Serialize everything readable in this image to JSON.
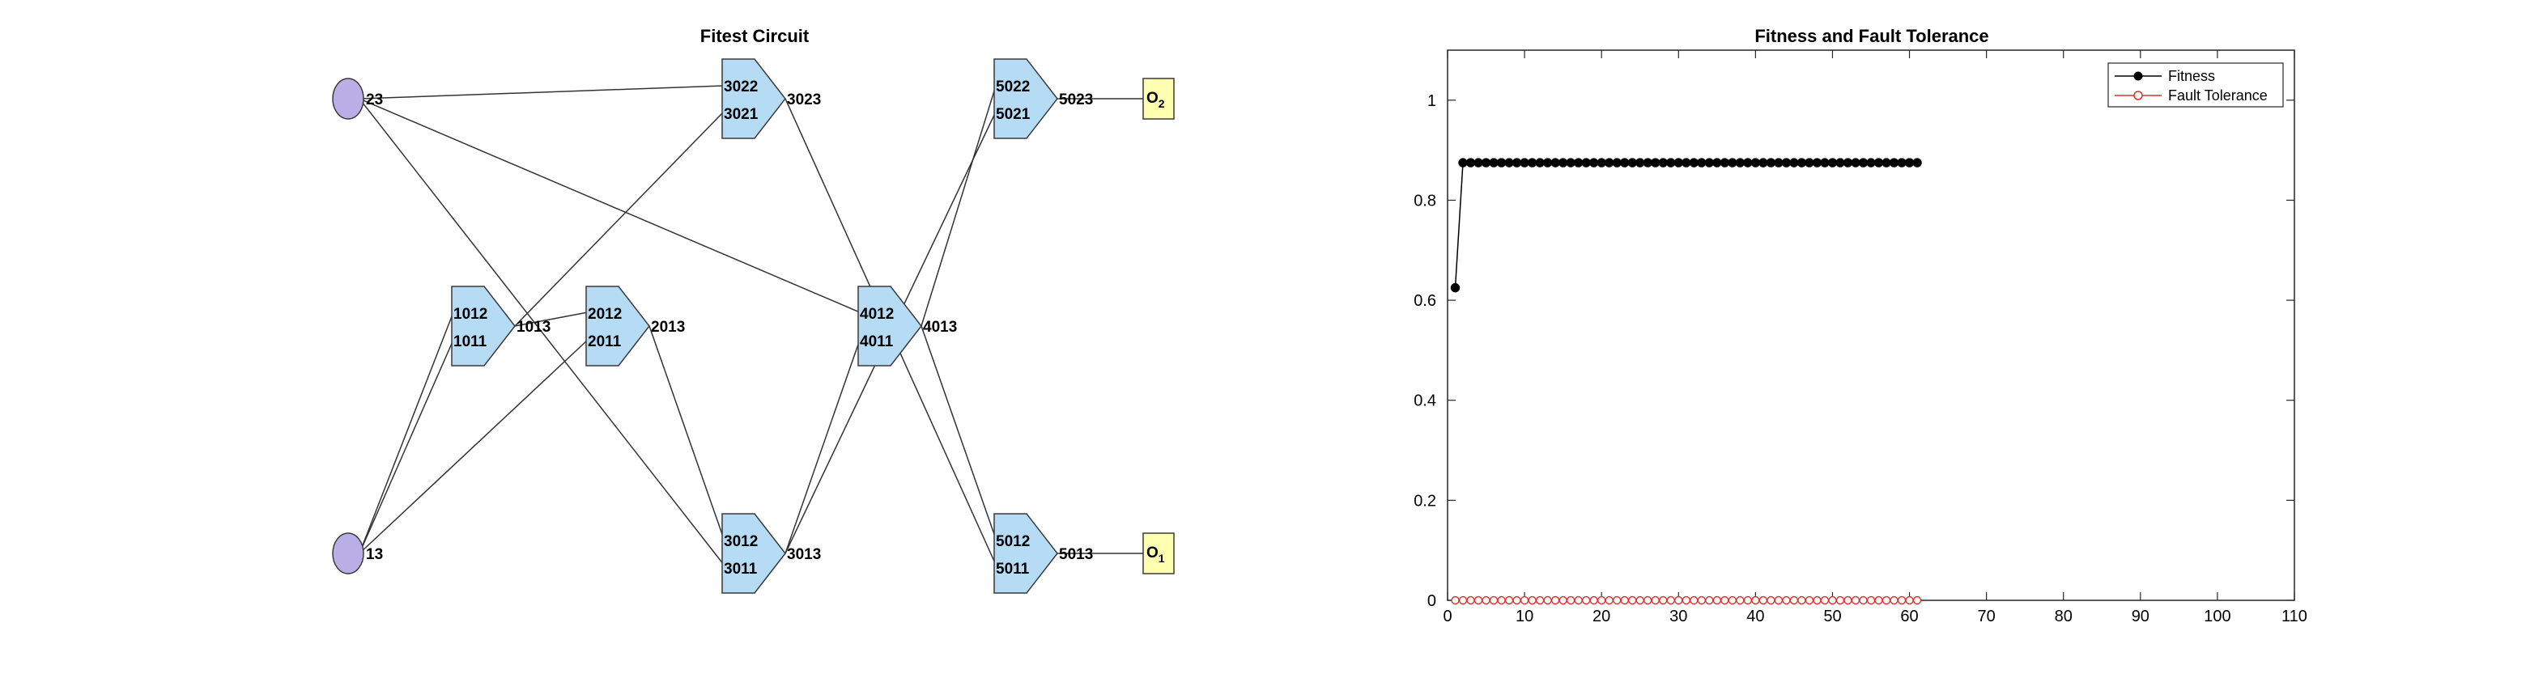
{
  "circuit": {
    "title": "Fitest Circuit",
    "inputs": [
      {
        "id": "in-23",
        "label": "23"
      },
      {
        "id": "in-13",
        "label": "13"
      }
    ],
    "gates": [
      {
        "id": "g1",
        "in_top": "1012",
        "in_bot": "1011",
        "out": "1013"
      },
      {
        "id": "g2",
        "in_top": "2012",
        "in_bot": "2011",
        "out": "2013"
      },
      {
        "id": "g3",
        "in_top": "3022",
        "in_bot": "3021",
        "out": "3023"
      },
      {
        "id": "g4",
        "in_top": "3012",
        "in_bot": "3011",
        "out": "3013"
      },
      {
        "id": "g5",
        "in_top": "4012",
        "in_bot": "4011",
        "out": "4013"
      },
      {
        "id": "g6",
        "in_top": "5022",
        "in_bot": "5021",
        "out": "5023"
      },
      {
        "id": "g7",
        "in_top": "5012",
        "in_bot": "5011",
        "out": "5013"
      }
    ],
    "outputs": [
      {
        "id": "out-2",
        "label": "O",
        "sub": "2"
      },
      {
        "id": "out-1",
        "label": "O",
        "sub": "1"
      }
    ],
    "colors": {
      "input_fill": "#b9aee6",
      "gate_fill": "#b6dcf5",
      "output_fill": "#ffffb0",
      "stroke": "#3a3a3a"
    }
  },
  "chart_data": {
    "type": "line",
    "title": "Fitness and Fault Tolerance",
    "xlabel": "",
    "ylabel": "",
    "xlim": [
      0,
      110
    ],
    "ylim": [
      0,
      1.1
    ],
    "xticks": [
      0,
      10,
      20,
      30,
      40,
      50,
      60,
      70,
      80,
      90,
      100,
      110
    ],
    "yticks": [
      0,
      0.2,
      0.4,
      0.6,
      0.8,
      1
    ],
    "xtick_labels": [
      "0",
      "10",
      "20",
      "30",
      "40",
      "50",
      "60",
      "70",
      "80",
      "90",
      "100",
      "110"
    ],
    "ytick_labels": [
      "0",
      "0.2",
      "0.4",
      "0.6",
      "0.8",
      "1"
    ],
    "grid": false,
    "legend_position": "top-right",
    "x": [
      1,
      2,
      3,
      4,
      5,
      6,
      7,
      8,
      9,
      10,
      11,
      12,
      13,
      14,
      15,
      16,
      17,
      18,
      19,
      20,
      21,
      22,
      23,
      24,
      25,
      26,
      27,
      28,
      29,
      30,
      31,
      32,
      33,
      34,
      35,
      36,
      37,
      38,
      39,
      40,
      41,
      42,
      43,
      44,
      45,
      46,
      47,
      48,
      49,
      50,
      51,
      52,
      53,
      54,
      55,
      56,
      57,
      58,
      59,
      60,
      61
    ],
    "series": [
      {
        "name": "Fitness",
        "color": "#000000",
        "marker": "filled-circle",
        "values": [
          0.625,
          0.875,
          0.875,
          0.875,
          0.875,
          0.875,
          0.875,
          0.875,
          0.875,
          0.875,
          0.875,
          0.875,
          0.875,
          0.875,
          0.875,
          0.875,
          0.875,
          0.875,
          0.875,
          0.875,
          0.875,
          0.875,
          0.875,
          0.875,
          0.875,
          0.875,
          0.875,
          0.875,
          0.875,
          0.875,
          0.875,
          0.875,
          0.875,
          0.875,
          0.875,
          0.875,
          0.875,
          0.875,
          0.875,
          0.875,
          0.875,
          0.875,
          0.875,
          0.875,
          0.875,
          0.875,
          0.875,
          0.875,
          0.875,
          0.875,
          0.875,
          0.875,
          0.875,
          0.875,
          0.875,
          0.875,
          0.875,
          0.875,
          0.875,
          0.875,
          0.875
        ]
      },
      {
        "name": "Fault Tolerance",
        "color": "#e03030",
        "marker": "open-circle",
        "values": [
          0,
          0,
          0,
          0,
          0,
          0,
          0,
          0,
          0,
          0,
          0,
          0,
          0,
          0,
          0,
          0,
          0,
          0,
          0,
          0,
          0,
          0,
          0,
          0,
          0,
          0,
          0,
          0,
          0,
          0,
          0,
          0,
          0,
          0,
          0,
          0,
          0,
          0,
          0,
          0,
          0,
          0,
          0,
          0,
          0,
          0,
          0,
          0,
          0,
          0,
          0,
          0,
          0,
          0,
          0,
          0,
          0,
          0,
          0,
          0,
          0
        ]
      }
    ]
  }
}
